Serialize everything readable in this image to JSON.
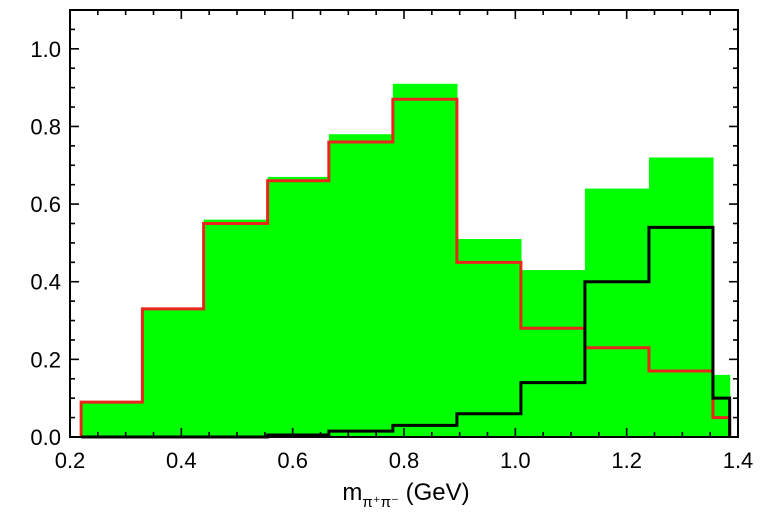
{
  "chart_data": {
    "type": "histogram",
    "bin_edges": [
      0.22,
      0.33,
      0.44,
      0.555,
      0.665,
      0.78,
      0.895,
      1.01,
      1.125,
      1.24,
      1.355,
      1.385
    ],
    "series": [
      {
        "style": "filled",
        "color": "#00ff00",
        "values": [
          0.09,
          0.33,
          0.56,
          0.67,
          0.78,
          0.91,
          0.51,
          0.43,
          0.64,
          0.72,
          0.16
        ]
      },
      {
        "style": "step",
        "color": "#e8261c",
        "values": [
          0.09,
          0.33,
          0.55,
          0.66,
          0.76,
          0.87,
          0.45,
          0.28,
          0.23,
          0.17,
          0.05
        ]
      },
      {
        "style": "step",
        "color": "#000000",
        "values": [
          0.0,
          0.0,
          0.0,
          0.005,
          0.015,
          0.03,
          0.06,
          0.14,
          0.4,
          0.54,
          0.1
        ]
      }
    ],
    "xlim": [
      0.2,
      1.4
    ],
    "ylim": [
      0.0,
      1.1
    ],
    "xticks": [
      "0.2",
      "0.4",
      "0.6",
      "0.8",
      "1.0",
      "1.2",
      "1.4"
    ],
    "yticks": [
      "0.0",
      "0.2",
      "0.4",
      "0.6",
      "0.8",
      "1.0"
    ],
    "xlabel": {
      "main": "m",
      "sub": "π⁺π⁻",
      "unit": " (GeV)"
    },
    "ylabel": "",
    "title": "",
    "grid": false
  }
}
